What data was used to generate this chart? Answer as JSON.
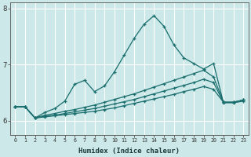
{
  "xlabel": "Humidex (Indice chaleur)",
  "background_color": "#cce8e8",
  "grid_color": "#ffffff",
  "line_color": "#1a6e6e",
  "xlim": [
    -0.5,
    23.5
  ],
  "ylim": [
    5.75,
    8.1
  ],
  "yticks": [
    6,
    7,
    8
  ],
  "xticks": [
    0,
    1,
    2,
    3,
    4,
    5,
    6,
    7,
    8,
    9,
    10,
    11,
    12,
    13,
    14,
    15,
    16,
    17,
    18,
    19,
    20,
    21,
    22,
    23
  ],
  "s1_x": [
    0,
    1,
    2,
    3,
    4,
    5,
    6,
    7,
    8,
    9,
    10,
    11,
    12,
    13,
    14,
    15,
    16,
    17,
    18,
    19,
    20,
    21,
    22,
    23
  ],
  "s1_y": [
    6.25,
    6.25,
    6.05,
    6.15,
    6.22,
    6.35,
    6.65,
    6.72,
    6.52,
    6.62,
    6.87,
    7.17,
    7.47,
    7.72,
    7.87,
    7.68,
    7.35,
    7.12,
    7.02,
    6.92,
    7.02,
    6.32,
    6.32,
    6.35
  ],
  "s2_x": [
    0,
    1,
    2,
    3,
    4,
    5,
    6,
    7,
    8,
    9,
    10,
    11,
    12,
    13,
    14,
    15,
    16,
    17,
    18,
    19,
    20,
    21,
    22,
    23
  ],
  "s2_y": [
    6.25,
    6.25,
    6.05,
    6.1,
    6.13,
    6.17,
    6.2,
    6.24,
    6.28,
    6.33,
    6.38,
    6.43,
    6.48,
    6.54,
    6.6,
    6.66,
    6.72,
    6.78,
    6.84,
    6.9,
    6.78,
    6.33,
    6.33,
    6.37
  ],
  "s3_x": [
    0,
    1,
    2,
    3,
    4,
    5,
    6,
    7,
    8,
    9,
    10,
    11,
    12,
    13,
    14,
    15,
    16,
    17,
    18,
    19,
    20,
    21,
    22,
    23
  ],
  "s3_y": [
    6.25,
    6.25,
    6.05,
    6.08,
    6.1,
    6.13,
    6.16,
    6.19,
    6.22,
    6.26,
    6.3,
    6.34,
    6.38,
    6.43,
    6.48,
    6.53,
    6.58,
    6.63,
    6.68,
    6.74,
    6.68,
    6.33,
    6.33,
    6.37
  ],
  "s4_x": [
    0,
    1,
    2,
    3,
    4,
    5,
    6,
    7,
    8,
    9,
    10,
    11,
    12,
    13,
    14,
    15,
    16,
    17,
    18,
    19,
    20,
    21,
    22,
    23
  ],
  "s4_y": [
    6.25,
    6.25,
    6.05,
    6.07,
    6.09,
    6.11,
    6.13,
    6.15,
    6.17,
    6.2,
    6.23,
    6.27,
    6.31,
    6.35,
    6.39,
    6.43,
    6.47,
    6.52,
    6.56,
    6.61,
    6.56,
    6.33,
    6.33,
    6.37
  ]
}
